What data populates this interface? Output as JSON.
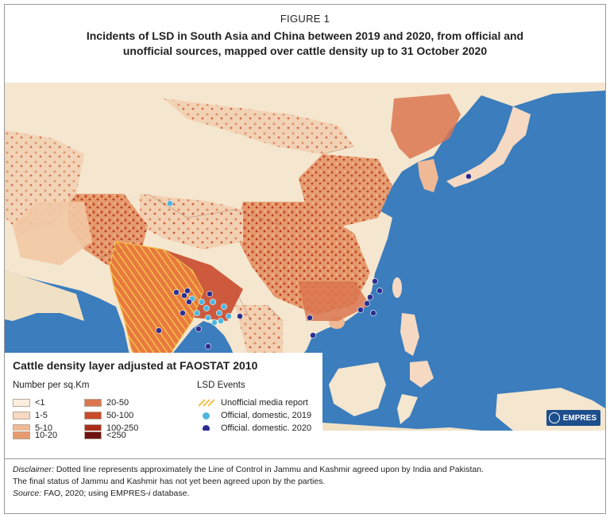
{
  "figure": {
    "label": "FIGURE 1",
    "title_line1": "Incidents of LSD in South Asia and China between 2019 and 2020, from official and",
    "title_line2": "unofficial sources, mapped over cattle density up to 31 October 2020"
  },
  "legend": {
    "title": "Cattle density layer adjusted at FAOSTAT 2010",
    "density_heading": "Number per sq.Km",
    "density_classes": [
      {
        "label": "<1",
        "color": "#fbeedd"
      },
      {
        "label": "1-5",
        "color": "#f6d9c2"
      },
      {
        "label": "5-10",
        "color": "#efb995"
      },
      {
        "label": "10-20",
        "color": "#e79a6f"
      },
      {
        "label": "20-50",
        "color": "#db7550"
      },
      {
        "label": "50-100",
        "color": "#c94a2c"
      },
      {
        "label": "100-250",
        "color": "#a82d1b"
      },
      {
        "label": "<250",
        "color": "#6e1410"
      }
    ],
    "lsd_heading": "LSD Events",
    "lsd_items": [
      {
        "label": "Unofficial media report",
        "symbol": "hatch",
        "color": "#f2c14e"
      },
      {
        "label": "Official, domestic, 2019",
        "symbol": "dot",
        "color": "#4fb6e0"
      },
      {
        "label": "Official, domestic, 2020",
        "symbol": "dot",
        "color": "#2c2f8f"
      }
    ]
  },
  "logo": {
    "text": "EMPRES"
  },
  "notes": {
    "disclaimer_label": "Disclaimer:",
    "disclaimer_text": " Dotted line represents approximately the Line of Control in Jammu and Kashmir agreed upon by India and Pakistan.",
    "disclaimer_line2": "The final status of Jammu and Kashmir has not yet been agreed upon by the parties.",
    "source_label": "Source:",
    "source_text": " FAO, 2020; using EMPRES-",
    "source_italic": "i",
    "source_end": " database."
  },
  "map": {
    "ocean_color": "#3b7dbd",
    "land_color": "#f5e6cf",
    "events_2019": [
      [
        208,
        152
      ],
      [
        236,
        272
      ],
      [
        248,
        276
      ],
      [
        254,
        284
      ],
      [
        262,
        276
      ],
      [
        270,
        290
      ],
      [
        276,
        282
      ],
      [
        256,
        296
      ],
      [
        264,
        302
      ],
      [
        242,
        290
      ],
      [
        282,
        294
      ],
      [
        272,
        300
      ]
    ],
    "events_2020": [
      [
        584,
        118
      ],
      [
        466,
        250
      ],
      [
        460,
        270
      ],
      [
        472,
        262
      ],
      [
        448,
        286
      ],
      [
        464,
        290
      ],
      [
        456,
        278
      ],
      [
        384,
        296
      ],
      [
        388,
        318
      ],
      [
        230,
        262
      ],
      [
        232,
        276
      ],
      [
        224,
        290
      ],
      [
        244,
        310
      ],
      [
        194,
        312
      ],
      [
        200,
        368
      ],
      [
        182,
        386
      ],
      [
        256,
        332
      ],
      [
        226,
        268
      ],
      [
        216,
        264
      ],
      [
        258,
        266
      ],
      [
        296,
        294
      ]
    ]
  }
}
